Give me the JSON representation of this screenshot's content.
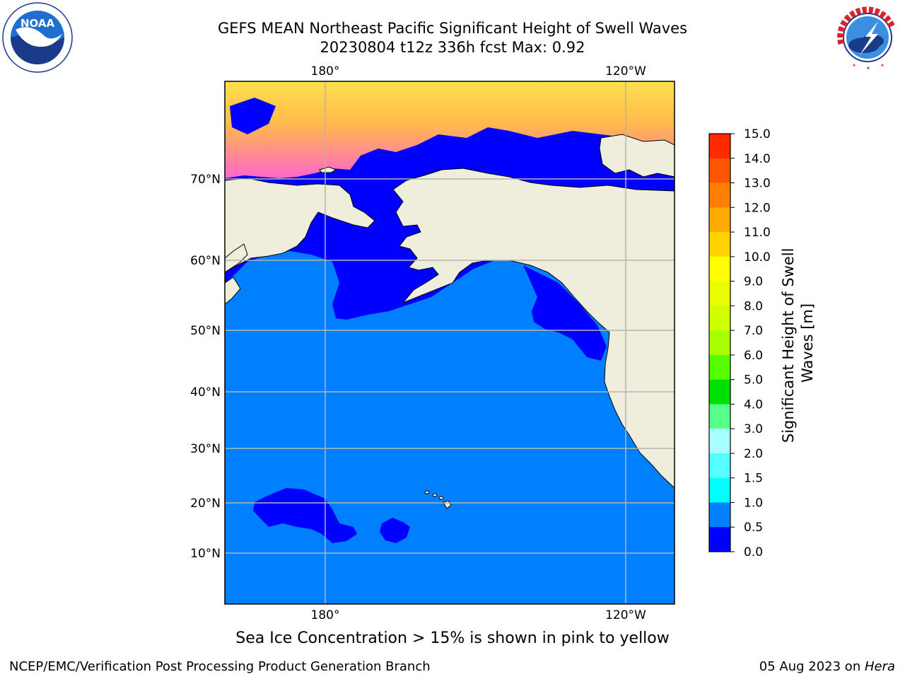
{
  "title": {
    "line1": "GEFS MEAN Northeast Pacific Significant Height of Swell Waves",
    "line2": "20230804 t12z 336h fcst   Max: 0.92"
  },
  "logos": {
    "left": "noaa-logo",
    "left_text": "NOAA",
    "left_ring": "NATIONAL OCEANIC AND ATMOSPHERIC ADMINISTRATION · U.S. DEPARTMENT OF COMMERCE",
    "right": "nws-logo",
    "right_ring": "NATIONAL WEATHER SERVICE"
  },
  "map": {
    "lon_labels_top": [
      "180°",
      "120°W"
    ],
    "lon_labels_bottom": [
      "180°",
      "120°W"
    ],
    "lat_labels": [
      "70°N",
      "60°N",
      "50°N",
      "40°N",
      "30°N",
      "20°N",
      "10°N"
    ],
    "colors": {
      "land": "#efeedc",
      "ocean_main": "#0080ff",
      "ocean_low": "#0000ff",
      "ice_pink": "#ff66cc",
      "ice_orange": "#ffb84d",
      "ice_yellow": "#ffe14d",
      "gridline": "#b4b4b4"
    }
  },
  "colorbar": {
    "label_line1": "Significant Height of Swell",
    "label_line2": "Waves [m]",
    "tick_labels": [
      "15.0",
      "14.0",
      "13.0",
      "12.0",
      "11.0",
      "10.0",
      "9.0",
      "8.0",
      "7.0",
      "6.0",
      "5.0",
      "4.0",
      "3.0",
      "2.0",
      "1.5",
      "1.0",
      "0.5",
      "0.0"
    ],
    "colors": [
      "#ff0000",
      "#ff2a00",
      "#ff5500",
      "#ff8000",
      "#ffaa00",
      "#ffd400",
      "#ffff00",
      "#e8ff00",
      "#d0ff00",
      "#a8ff00",
      "#55ff00",
      "#00e000",
      "#55ff88",
      "#a8ffff",
      "#55ffff",
      "#00ffff",
      "#0080ff",
      "#0000ff"
    ]
  },
  "caption": "Sea Ice Concentration > 15% is shown in pink to yellow",
  "footer": {
    "left": "NCEP/EMC/Verification Post Processing Product Generation Branch",
    "right_date": "05 Aug 2023 on ",
    "right_host": "Hera"
  }
}
